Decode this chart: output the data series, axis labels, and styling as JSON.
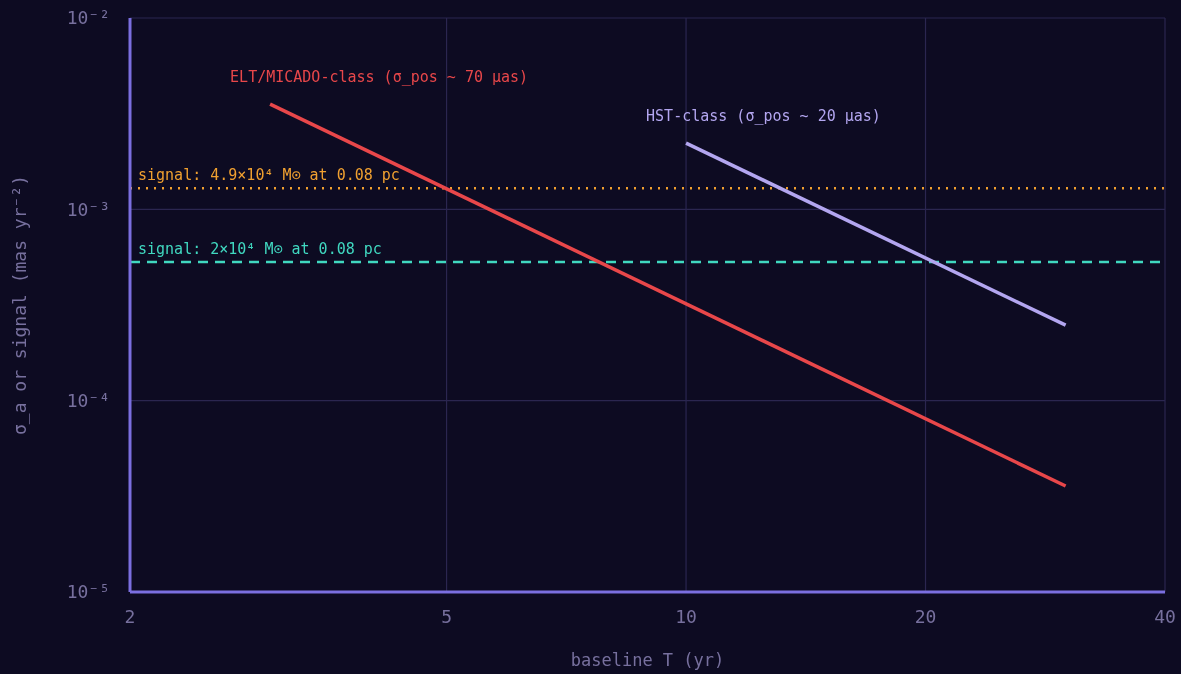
{
  "chart_data": {
    "type": "line",
    "xlabel": "baseline T (yr)",
    "ylabel": "σ_a or signal (mas yr⁻²)",
    "log": "xy",
    "grid": true,
    "legend": false,
    "line_style": "solid",
    "marker": "none",
    "xlim": [
      2,
      40
    ],
    "xticks": [
      2,
      5,
      10,
      20,
      40
    ],
    "ylim": [
      1e-05,
      0.01
    ],
    "yticks": [
      {
        "value": 1e-05,
        "label": "10⁻⁵"
      },
      {
        "value": 0.0001,
        "label": "10⁻⁴"
      },
      {
        "value": 0.001,
        "label": "10⁻³"
      },
      {
        "value": 0.01,
        "label": "10⁻²"
      }
    ],
    "series": [
      {
        "name": "ELT/MICADO-class (σ_pos ~ 70 μas)",
        "color": "#e8474a",
        "x": [
          3,
          30
        ],
        "values": [
          0.00355,
          3.58e-05
        ]
      },
      {
        "name": "HST-class (σ_pos ~ 20 μas)",
        "color": "#b3a6f0",
        "x": [
          10,
          30
        ],
        "values": [
          0.00222,
          0.000248
        ]
      }
    ],
    "ref_lines": [
      {
        "axis": "y",
        "value": 0.00129,
        "color": "#f0a030",
        "line_style": "dotted"
      },
      {
        "axis": "y",
        "value": 0.00053,
        "color": "#40d8c0",
        "line_style": "dashed"
      }
    ],
    "annotations": [
      "signal: 4.9×10⁴ M⊙ at 0.08 pc",
      "signal: 2×10⁴ M⊙ at 0.08 pc"
    ]
  }
}
